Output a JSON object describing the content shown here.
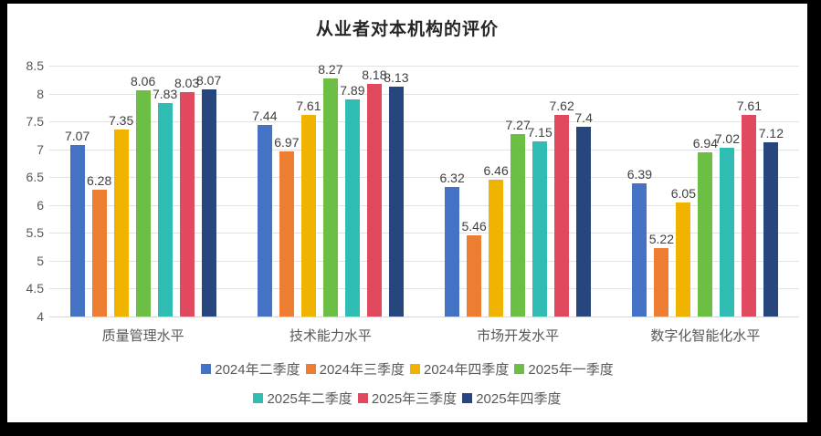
{
  "frame": {
    "background": "#000000",
    "panel_background": "#ffffff"
  },
  "chart_data": {
    "type": "bar",
    "title": "从业者对本机构的评价",
    "categories": [
      "质量管理水平",
      "技术能力水平",
      "市场开发水平",
      "数字化智能化水平"
    ],
    "series": [
      {
        "name": "2024年二季度",
        "color": "#4472c4",
        "values": [
          7.07,
          7.44,
          6.32,
          6.39
        ]
      },
      {
        "name": "2024年三季度",
        "color": "#ed7d31",
        "values": [
          6.28,
          6.97,
          5.46,
          5.22
        ]
      },
      {
        "name": "2024年四季度",
        "color": "#f0b400",
        "values": [
          7.35,
          7.61,
          6.46,
          6.05
        ]
      },
      {
        "name": "2025年一季度",
        "color": "#6cbe45",
        "values": [
          8.06,
          8.27,
          7.27,
          6.94
        ]
      },
      {
        "name": "2025年二季度",
        "color": "#2fbdb3",
        "values": [
          7.83,
          7.89,
          7.15,
          7.02
        ]
      },
      {
        "name": "2025年三季度",
        "color": "#e0495e",
        "values": [
          8.03,
          8.18,
          7.62,
          7.61
        ]
      },
      {
        "name": "2025年四季度",
        "color": "#27467d",
        "values": [
          8.07,
          8.13,
          7.4,
          7.12
        ]
      }
    ],
    "data_labels": [
      [
        "7.07",
        "7.44",
        "6.32",
        "6.39"
      ],
      [
        "6.28",
        "6.97",
        "5.46",
        "5.22"
      ],
      [
        "7.35",
        "7.61",
        "6.46",
        "6.05"
      ],
      [
        "8.06",
        "8.27",
        "7.27",
        "6.94"
      ],
      [
        "7.83",
        "7.89",
        "7.15",
        "7.02"
      ],
      [
        "8.03",
        "8.18",
        "7.62",
        "7.61"
      ],
      [
        "8.07",
        "8.13",
        "7.4",
        "7.12"
      ]
    ],
    "y_axis": {
      "min": 4,
      "max": 8.5,
      "step": 0.5,
      "tick_labels": [
        "4",
        "4.5",
        "5",
        "5.5",
        "6",
        "6.5",
        "7",
        "7.5",
        "8",
        "8.5"
      ]
    },
    "grid": true,
    "legend_position": "bottom",
    "legend_rows": [
      [
        0,
        1,
        2,
        3
      ],
      [
        4,
        5,
        6
      ]
    ],
    "label_color": "#404040",
    "axis_text_color": "#595959",
    "gridline_color": "#e2e2e2"
  }
}
